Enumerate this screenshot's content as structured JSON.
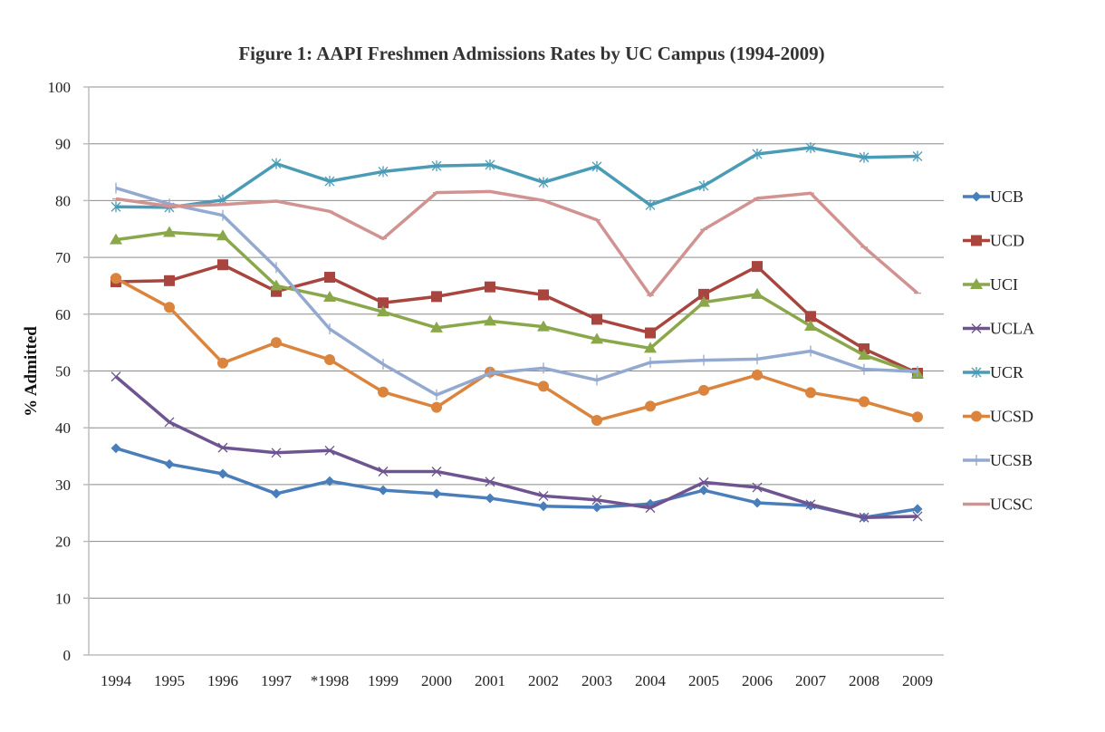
{
  "chart_data": {
    "type": "line",
    "title": "Figure 1: AAPI Freshmen Admissions Rates by UC Campus (1994-2009)",
    "xlabel": "",
    "ylabel": "% Admitted",
    "ylim": [
      0,
      100
    ],
    "yticks": [
      0,
      10,
      20,
      30,
      40,
      50,
      60,
      70,
      80,
      90,
      100
    ],
    "grid": true,
    "legend_position": "right",
    "categories": [
      "1994",
      "1995",
      "1996",
      "1997",
      "*1998",
      "1999",
      "2000",
      "2001",
      "2002",
      "2003",
      "2004",
      "2005",
      "2006",
      "2007",
      "2008",
      "2009"
    ],
    "series": [
      {
        "name": "UCB",
        "color": "#4A7EBB",
        "marker": "diamond",
        "values": [
          36.4,
          33.6,
          31.9,
          28.4,
          30.6,
          29.0,
          28.4,
          27.6,
          26.2,
          26.0,
          26.6,
          29.0,
          26.8,
          26.3,
          24.2,
          25.7
        ]
      },
      {
        "name": "UCD",
        "color": "#A9453F",
        "marker": "square",
        "values": [
          65.7,
          65.9,
          68.7,
          64.0,
          66.5,
          62.0,
          63.1,
          64.8,
          63.4,
          59.1,
          56.7,
          63.5,
          68.4,
          59.6,
          53.9,
          49.6
        ]
      },
      {
        "name": "UCI",
        "color": "#8AA84B",
        "marker": "triangle",
        "values": [
          73.1,
          74.4,
          73.8,
          65.0,
          63.0,
          60.4,
          57.6,
          58.8,
          57.8,
          55.6,
          54.0,
          62.1,
          63.5,
          57.9,
          52.8,
          49.5
        ]
      },
      {
        "name": "UCLA",
        "color": "#6E5490",
        "marker": "x",
        "values": [
          49.0,
          41.0,
          36.5,
          35.6,
          36.0,
          32.3,
          32.3,
          30.5,
          28.0,
          27.3,
          25.9,
          30.4,
          29.5,
          26.5,
          24.2,
          24.4
        ]
      },
      {
        "name": "UCR",
        "color": "#4A9BB5",
        "marker": "asterisk",
        "values": [
          78.9,
          78.8,
          80.1,
          86.5,
          83.4,
          85.1,
          86.1,
          86.3,
          83.2,
          86.0,
          79.2,
          82.6,
          88.2,
          89.3,
          87.6,
          87.8
        ]
      },
      {
        "name": "UCSD",
        "color": "#DB843D",
        "marker": "circle",
        "values": [
          66.3,
          61.2,
          51.4,
          55.0,
          52.0,
          46.3,
          43.6,
          49.8,
          47.3,
          41.3,
          43.8,
          46.6,
          49.3,
          46.2,
          44.6,
          41.9
        ]
      },
      {
        "name": "UCSB",
        "color": "#93A9CF",
        "marker": "plus",
        "values": [
          82.2,
          79.4,
          77.4,
          68.2,
          57.4,
          51.2,
          45.8,
          49.6,
          50.5,
          48.4,
          51.5,
          51.9,
          52.1,
          53.5,
          50.3,
          49.9
        ]
      },
      {
        "name": "UCSC",
        "color": "#D19392",
        "marker": "dash",
        "values": [
          80.3,
          79.0,
          79.3,
          79.9,
          78.1,
          73.3,
          81.4,
          81.6,
          80.0,
          76.6,
          63.3,
          74.9,
          80.4,
          81.3,
          71.8,
          63.7
        ]
      }
    ]
  }
}
